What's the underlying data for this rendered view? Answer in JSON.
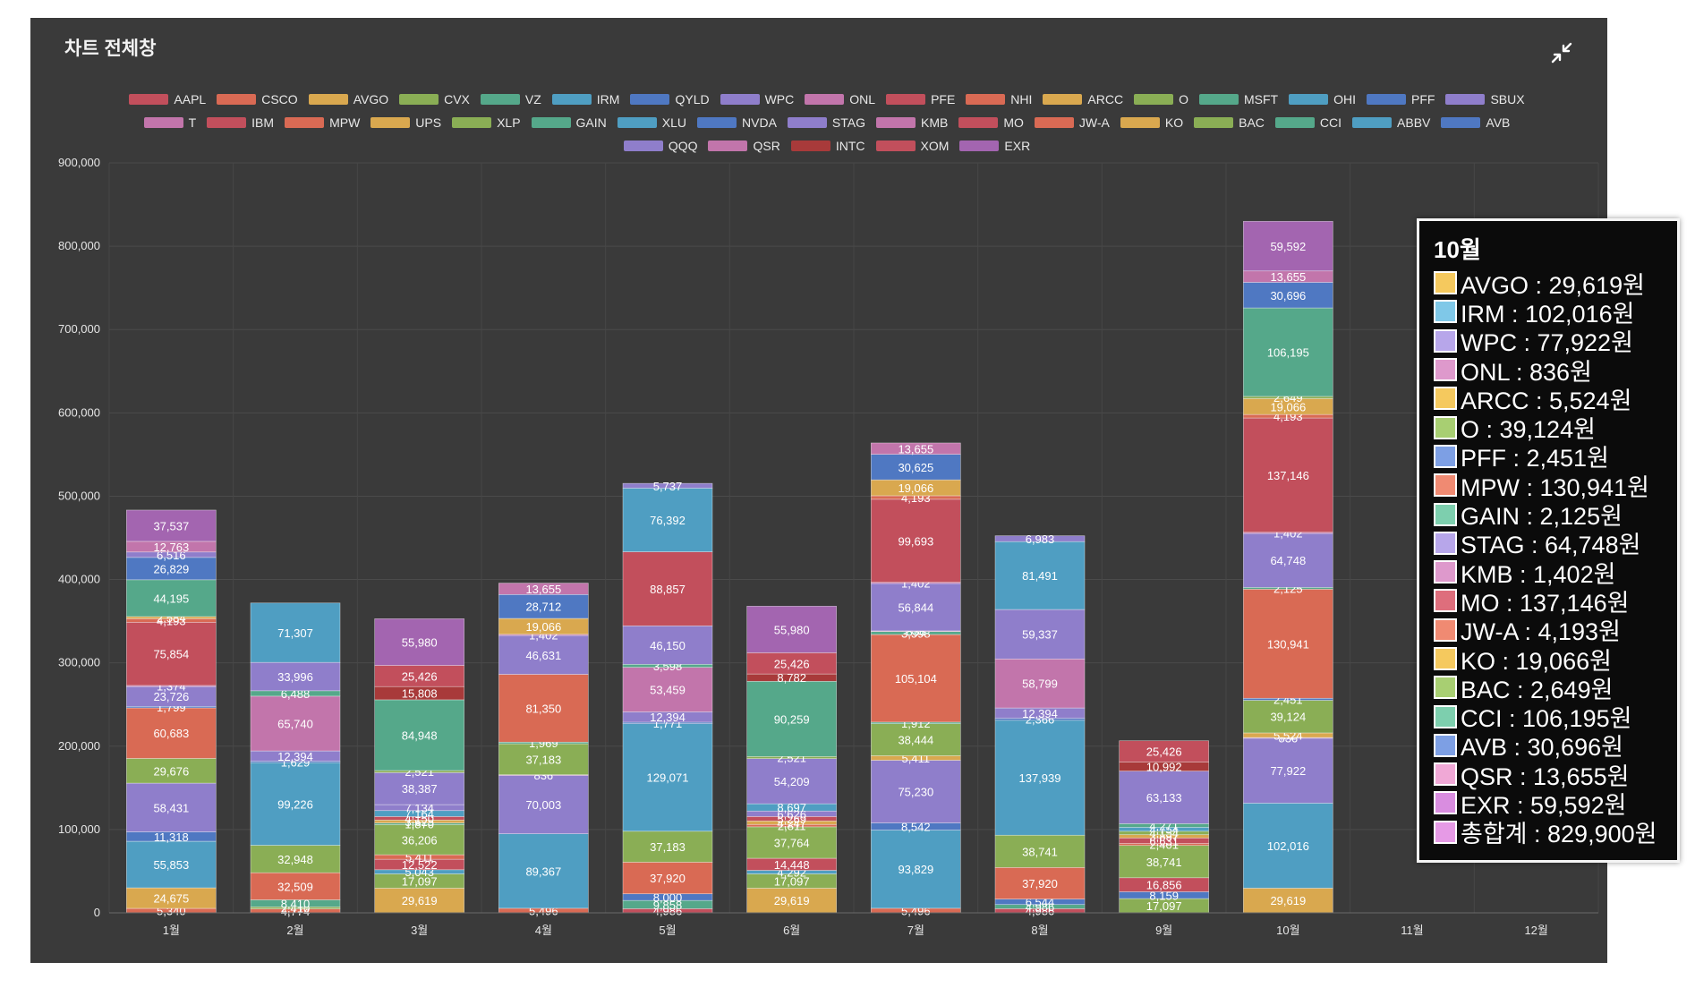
{
  "panel": {
    "title": "차트 전체창",
    "collapse_icon": "collapse-arrows-icon"
  },
  "legend": {
    "items": [
      {
        "label": "AAPL",
        "color": "#c24f5c"
      },
      {
        "label": "CSCO",
        "color": "#d96a54"
      },
      {
        "label": "AVGO",
        "color": "#d9a84f"
      },
      {
        "label": "CVX",
        "color": "#8aae55"
      },
      {
        "label": "VZ",
        "color": "#55a88a"
      },
      {
        "label": "IRM",
        "color": "#4f9ec2"
      },
      {
        "label": "QYLD",
        "color": "#4f78c2"
      },
      {
        "label": "WPC",
        "color": "#8f7ecb"
      },
      {
        "label": "ONL",
        "color": "#c275ab"
      },
      {
        "label": "PFE",
        "color": "#c24f5c"
      },
      {
        "label": "NHI",
        "color": "#d96a54"
      },
      {
        "label": "ARCC",
        "color": "#d9a84f"
      },
      {
        "label": "O",
        "color": "#8aae55"
      },
      {
        "label": "MSFT",
        "color": "#55a88a"
      },
      {
        "label": "OHI",
        "color": "#4f9ec2"
      },
      {
        "label": "PFF",
        "color": "#4f78c2"
      },
      {
        "label": "SBUX",
        "color": "#8f7ecb"
      },
      {
        "label": "T",
        "color": "#c275ab"
      },
      {
        "label": "IBM",
        "color": "#c24f5c"
      },
      {
        "label": "MPW",
        "color": "#d96a54"
      },
      {
        "label": "UPS",
        "color": "#d9a84f"
      },
      {
        "label": "XLP",
        "color": "#8aae55"
      },
      {
        "label": "GAIN",
        "color": "#55a88a"
      },
      {
        "label": "XLU",
        "color": "#4f9ec2"
      },
      {
        "label": "NVDA",
        "color": "#4f78c2"
      },
      {
        "label": "STAG",
        "color": "#8f7ecb"
      },
      {
        "label": "KMB",
        "color": "#c275ab"
      },
      {
        "label": "MO",
        "color": "#c24f5c"
      },
      {
        "label": "JW-A",
        "color": "#d96a54"
      },
      {
        "label": "KO",
        "color": "#d9a84f"
      },
      {
        "label": "BAC",
        "color": "#8aae55"
      },
      {
        "label": "CCI",
        "color": "#55a88a"
      },
      {
        "label": "ABBV",
        "color": "#4f9ec2"
      },
      {
        "label": "AVB",
        "color": "#4f78c2"
      },
      {
        "label": "QQQ",
        "color": "#8f7ecb"
      },
      {
        "label": "QSR",
        "color": "#c275ab"
      },
      {
        "label": "INTC",
        "color": "#a83a3a"
      },
      {
        "label": "XOM",
        "color": "#c24f5c"
      },
      {
        "label": "EXR",
        "color": "#a365b0"
      }
    ]
  },
  "chart_data": {
    "type": "bar",
    "stacked": true,
    "categories": [
      "1월",
      "2월",
      "3월",
      "4월",
      "5월",
      "6월",
      "7월",
      "8월",
      "9월",
      "10월",
      "11월",
      "12월"
    ],
    "ylim": [
      0,
      900000
    ],
    "yticks": [
      "0",
      "100,000",
      "200,000",
      "300,000",
      "400,000",
      "500,000",
      "600,000",
      "700,000",
      "800,000",
      "900,000"
    ],
    "grid": true,
    "legend_position": "top",
    "stacks": [
      [
        [
          5340,
          "#d96a54",
          "5,340"
        ],
        [
          24675,
          "#d9a84f",
          "24,675"
        ],
        [
          55853,
          "#4f9ec2",
          "55,853"
        ],
        [
          11318,
          "#4f78c2",
          "11,318"
        ],
        [
          58431,
          "#8f7ecb",
          "58,431"
        ],
        [
          29676,
          "#8aae55",
          "29,676"
        ],
        [
          60683,
          "#d96a54",
          "60,683"
        ],
        [
          1799,
          "#4f78c2",
          "1,799"
        ],
        [
          23726,
          "#8f7ecb",
          "23,726"
        ],
        [
          1374,
          "#c275ab",
          "1,374"
        ],
        [
          75854,
          "#c24f5c",
          "75,854"
        ],
        [
          4193,
          "#d96a54",
          "4,193"
        ],
        [
          2584,
          "#d9a84f",
          "2,584"
        ],
        [
          44195,
          "#55a88a",
          "44,195"
        ],
        [
          26829,
          "#4f78c2",
          "26,829"
        ],
        [
          6516,
          "#8f7ecb",
          "6,516"
        ],
        [
          12763,
          "#c275ab",
          "12,763"
        ],
        [
          37537,
          "#a365b0",
          "37,537"
        ]
      ],
      [
        [
          4774,
          "#d96a54",
          "4,774"
        ],
        [
          2410,
          "#8aae55",
          "2,410"
        ],
        [
          8410,
          "#55a88a",
          "8,410"
        ],
        [
          32509,
          "#d96a54",
          "32,509"
        ],
        [
          32948,
          "#8aae55",
          "32,948"
        ],
        [
          99226,
          "#4f9ec2",
          "99,226"
        ],
        [
          1629,
          "#4f78c2",
          "1,629"
        ],
        [
          12394,
          "#8f7ecb",
          "12,394"
        ],
        [
          65740,
          "#c275ab",
          "65,740"
        ],
        [
          6488,
          "#55a88a",
          "6,488"
        ],
        [
          33996,
          "#8f7ecb",
          "33,996"
        ],
        [
          71307,
          "#4f9ec2",
          "71,307"
        ]
      ],
      [
        [
          29619,
          "#d9a84f",
          "29,619"
        ],
        [
          17097,
          "#8aae55",
          "17,097"
        ],
        [
          5043,
          "#4f9ec2",
          "5,043"
        ],
        [
          12522,
          "#c24f5c",
          "12,522"
        ],
        [
          5411,
          "#d96a54",
          "5,411"
        ],
        [
          36206,
          "#8aae55",
          "36,206"
        ],
        [
          1870,
          "#55a88a",
          "1,870"
        ],
        [
          3625,
          "#d9a84f",
          "3,625"
        ],
        [
          4150,
          "#c24f5c",
          "4,150"
        ],
        [
          7164,
          "#4f9ec2",
          "7,164"
        ],
        [
          7134,
          "#8f7ecb",
          "7,134"
        ],
        [
          38387,
          "#8f7ecb",
          "38,387"
        ],
        [
          2521,
          "#8aae55",
          "2,521"
        ],
        [
          84948,
          "#55a88a",
          "84,948"
        ],
        [
          15808,
          "#a83a3a",
          "15,808"
        ],
        [
          25426,
          "#c24f5c",
          "25,426"
        ],
        [
          55980,
          "#a365b0",
          "55,980"
        ]
      ],
      [
        [
          5496,
          "#d96a54",
          "5,496"
        ],
        [
          89367,
          "#4f9ec2",
          "89,367"
        ],
        [
          70003,
          "#8f7ecb",
          "70,003"
        ],
        [
          836,
          "#c275ab",
          "836"
        ],
        [
          37183,
          "#8aae55",
          "37,183"
        ],
        [
          1969,
          "#55a88a",
          "1,969"
        ],
        [
          81350,
          "#d96a54",
          "81,350"
        ],
        [
          46631,
          "#8f7ecb",
          "46,631"
        ],
        [
          1402,
          "#c275ab",
          "1,402"
        ],
        [
          19066,
          "#d9a84f",
          "19,066"
        ],
        [
          28712,
          "#4f78c2",
          "28,712"
        ],
        [
          13655,
          "#c275ab",
          "13,655"
        ]
      ],
      [
        [
          4986,
          "#c24f5c",
          "4,986"
        ],
        [
          9858,
          "#55a88a",
          "9,858"
        ],
        [
          8000,
          "#4f78c2",
          "8,000"
        ],
        [
          37920,
          "#d96a54",
          "37,920"
        ],
        [
          37183,
          "#8aae55",
          "37,183"
        ],
        [
          129071,
          "#4f9ec2",
          "129,071"
        ],
        [
          1771,
          "#4f78c2",
          "1,771"
        ],
        [
          12394,
          "#8f7ecb",
          "12,394"
        ],
        [
          53459,
          "#c275ab",
          "53,459"
        ],
        [
          3598,
          "#55a88a",
          "3,598"
        ],
        [
          46150,
          "#8f7ecb",
          "46,150"
        ],
        [
          88857,
          "#c24f5c",
          "88,857"
        ],
        [
          76392,
          "#4f9ec2",
          "76,392"
        ],
        [
          5737,
          "#8f7ecb",
          "5,737"
        ]
      ],
      [
        [
          29619,
          "#d9a84f",
          "29,619"
        ],
        [
          17097,
          "#8aae55",
          "17,097"
        ],
        [
          4292,
          "#4f9ec2",
          "4,292"
        ],
        [
          14448,
          "#c24f5c",
          "14,448"
        ],
        [
          37764,
          "#8aae55",
          "37,764"
        ],
        [
          2811,
          "#d96a54",
          "2,811"
        ],
        [
          4247,
          "#d9a84f",
          "4,247"
        ],
        [
          5269,
          "#c24f5c",
          "5,269"
        ],
        [
          6626,
          "#8f7ecb",
          "6,626"
        ],
        [
          8697,
          "#4f9ec2",
          "8,697"
        ],
        [
          54209,
          "#8f7ecb",
          "54,209"
        ],
        [
          2521,
          "#8aae55",
          "2,521"
        ],
        [
          90259,
          "#55a88a",
          "90,259"
        ],
        [
          8782,
          "#a83a3a",
          "8,782"
        ],
        [
          25426,
          "#c24f5c",
          "25,426"
        ],
        [
          55980,
          "#a365b0",
          "55,980"
        ]
      ],
      [
        [
          5496,
          "#d96a54",
          "5,496"
        ],
        [
          93829,
          "#4f9ec2",
          "93,829"
        ],
        [
          8542,
          "#4f78c2",
          "8,542"
        ],
        [
          75230,
          "#8f7ecb",
          "75,230"
        ],
        [
          5411,
          "#d9a84f",
          "5,411"
        ],
        [
          38444,
          "#8aae55",
          "38,444"
        ],
        [
          1912,
          "#55a88a",
          "1,912"
        ],
        [
          105104,
          "#d96a54",
          "105,104"
        ],
        [
          3598,
          "#55a88a",
          "3,598"
        ],
        [
          836,
          "#c275ab",
          "836"
        ],
        [
          56844,
          "#8f7ecb",
          "56,844"
        ],
        [
          1402,
          "#c275ab",
          "1,402"
        ],
        [
          99693,
          "#c24f5c",
          "99,693"
        ],
        [
          4193,
          "#d96a54",
          "4,193"
        ],
        [
          19066,
          "#d9a84f",
          "19,066"
        ],
        [
          30625,
          "#4f78c2",
          "30,625"
        ],
        [
          13655,
          "#c275ab",
          "13,655"
        ]
      ],
      [
        [
          4986,
          "#c24f5c",
          "4,986"
        ],
        [
          4986,
          "#55a88a",
          "4,986"
        ],
        [
          6544,
          "#4f78c2",
          "6,544"
        ],
        [
          37920,
          "#d96a54",
          "37,920"
        ],
        [
          38741,
          "#8aae55",
          "38,741"
        ],
        [
          137939,
          "#4f9ec2",
          "137,939"
        ],
        [
          2366,
          "#4f78c2",
          "2,366"
        ],
        [
          12394,
          "#8f7ecb",
          "12,394"
        ],
        [
          58799,
          "#c275ab",
          "58,799"
        ],
        [
          59337,
          "#8f7ecb",
          "59,337"
        ],
        [
          81491,
          "#4f9ec2",
          "81,491"
        ],
        [
          6983,
          "#8f7ecb",
          "6,983"
        ]
      ],
      [
        [
          17097,
          "#8aae55",
          "17,097"
        ],
        [
          8159,
          "#4f78c2",
          "8,159"
        ],
        [
          16856,
          "#c24f5c",
          "16,856"
        ],
        [
          38741,
          "#8aae55",
          "38,741"
        ],
        [
          2401,
          "#d96a54",
          "2,401"
        ],
        [
          6631,
          "#c24f5c",
          "6,631"
        ],
        [
          3897,
          "#d9a84f",
          "3,897"
        ],
        [
          4154,
          "#8aae55",
          "4,154"
        ],
        [
          4754,
          "#4f9ec2",
          "4,754"
        ],
        [
          4271,
          "#55a88a",
          "4,271"
        ],
        [
          63133,
          "#8f7ecb",
          "63,133"
        ],
        [
          10992,
          "#a83a3a",
          "10,992"
        ],
        [
          25426,
          "#c24f5c",
          "25,426"
        ]
      ],
      [
        [
          29619,
          "#d9a84f",
          "29,619"
        ],
        [
          102016,
          "#4f9ec2",
          "102,016"
        ],
        [
          77922,
          "#8f7ecb",
          "77,922"
        ],
        [
          836,
          "#c275ab",
          "836"
        ],
        [
          5524,
          "#d9a84f",
          "5,524"
        ],
        [
          39124,
          "#8aae55",
          "39,124"
        ],
        [
          2451,
          "#4f78c2",
          "2,451"
        ],
        [
          130941,
          "#d96a54",
          "130,941"
        ],
        [
          2125,
          "#55a88a",
          "2,125"
        ],
        [
          64748,
          "#8f7ecb",
          "64,748"
        ],
        [
          1402,
          "#c275ab",
          "1,402"
        ],
        [
          137146,
          "#c24f5c",
          "137,146"
        ],
        [
          4193,
          "#d96a54",
          "4,193"
        ],
        [
          19066,
          "#d9a84f",
          "19,066"
        ],
        [
          2649,
          "#8aae55",
          "2,649"
        ],
        [
          106195,
          "#55a88a",
          "106,195"
        ],
        [
          30696,
          "#4f78c2",
          "30,696"
        ],
        [
          13655,
          "#c275ab",
          "13,655"
        ],
        [
          59592,
          "#a365b0",
          "59,592"
        ]
      ],
      [],
      []
    ]
  },
  "tooltip": {
    "title": "10월",
    "rows": [
      {
        "text": "AVGO : 29,619원",
        "color": "#f5c95e"
      },
      {
        "text": "IRM : 102,016원",
        "color": "#7fc8e8"
      },
      {
        "text": "WPC : 77,922원",
        "color": "#b7a6ea"
      },
      {
        "text": "ONL : 836원",
        "color": "#de99cc"
      },
      {
        "text": "ARCC : 5,524원",
        "color": "#f5c95e"
      },
      {
        "text": "O : 39,124원",
        "color": "#a8cf72"
      },
      {
        "text": "PFF : 2,451원",
        "color": "#7d9fe4"
      },
      {
        "text": "MPW : 130,941원",
        "color": "#f08a72"
      },
      {
        "text": "GAIN : 2,125원",
        "color": "#7dcfae"
      },
      {
        "text": "STAG : 64,748원",
        "color": "#b7a6ea"
      },
      {
        "text": "KMB : 1,402원",
        "color": "#de99cc"
      },
      {
        "text": "MO : 137,146원",
        "color": "#de6e7c"
      },
      {
        "text": "JW-A : 4,193원",
        "color": "#f08a72"
      },
      {
        "text": "KO : 19,066원",
        "color": "#f5c95e"
      },
      {
        "text": "BAC : 2,649원",
        "color": "#a8cf72"
      },
      {
        "text": "CCI : 106,195원",
        "color": "#7dcfae"
      },
      {
        "text": "AVB : 30,696원",
        "color": "#7d9fe4"
      },
      {
        "text": "QSR : 13,655원",
        "color": "#f0a8d6"
      },
      {
        "text": "EXR : 59,592원",
        "color": "#d98de0"
      },
      {
        "text": "총합계 : 829,900원",
        "color": "#e69ae6"
      }
    ]
  }
}
